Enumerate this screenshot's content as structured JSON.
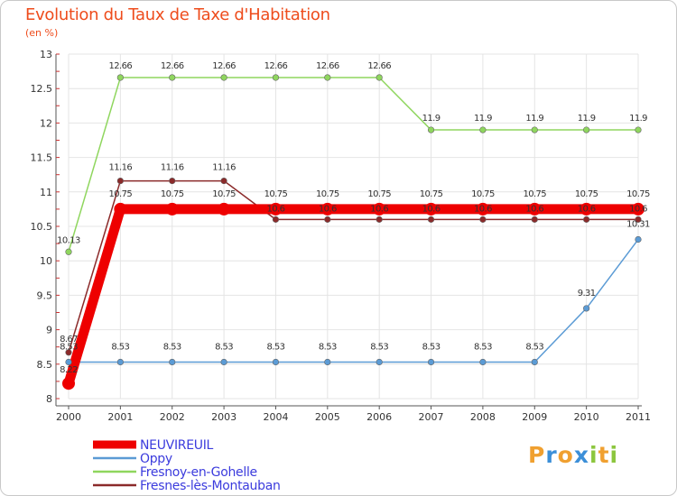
{
  "title": "Evolution du Taux de Taxe d'Habitation",
  "subtitle": "(en %)",
  "logo": {
    "letters": [
      "P",
      "r",
      "o",
      "x",
      "i",
      "t",
      "i"
    ],
    "colors": [
      "#f0a030",
      "#3c8fd8",
      "#f0a030",
      "#3c8fd8",
      "#8cc63e",
      "#f0a030",
      "#8cc63e"
    ]
  },
  "chart_data": {
    "type": "line",
    "x": [
      "2000",
      "2001",
      "2002",
      "2003",
      "2004",
      "2005",
      "2006",
      "2007",
      "2008",
      "2009",
      "2010",
      "2011"
    ],
    "y_ticks": [
      "8",
      "8.5",
      "9",
      "9.5",
      "10",
      "10.5",
      "11",
      "11.5",
      "12",
      "12.5",
      "13"
    ],
    "ylim": [
      8,
      13
    ],
    "grid": true,
    "legend_position": "bottom-left",
    "series": [
      {
        "name": "NEUVIREUIL",
        "color": "#ee0000",
        "values": [
          8.22,
          10.75,
          10.75,
          10.75,
          10.75,
          10.75,
          10.75,
          10.75,
          10.75,
          10.75,
          10.75,
          10.75
        ],
        "labels": [
          "8.22",
          "10.75",
          "10.75",
          "10.75",
          "10.75",
          "10.75",
          "10.75",
          "10.75",
          "10.75",
          "10.75",
          "10.75",
          "10.75"
        ]
      },
      {
        "name": "Oppy",
        "color": "#5b9bd5",
        "values": [
          8.53,
          8.53,
          8.53,
          8.53,
          8.53,
          8.53,
          8.53,
          8.53,
          8.53,
          8.53,
          9.31,
          10.31
        ],
        "labels": [
          "8.53",
          "8.53",
          "8.53",
          "8.53",
          "8.53",
          "8.53",
          "8.53",
          "8.53",
          "8.53",
          "8.53",
          "9.31",
          "10.31"
        ]
      },
      {
        "name": "Fresnoy-en-Gohelle",
        "color": "#8fd65e",
        "values": [
          10.13,
          12.66,
          12.66,
          12.66,
          12.66,
          12.66,
          12.66,
          11.9,
          11.9,
          11.9,
          11.9,
          11.9
        ],
        "labels": [
          "10.13",
          "12.66",
          "12.66",
          "12.66",
          "12.66",
          "12.66",
          "12.66",
          "11.9",
          "11.9",
          "11.9",
          "11.9",
          "11.9"
        ]
      },
      {
        "name": "Fresnes-lès-Montauban",
        "color": "#8b2a2a",
        "values": [
          8.67,
          11.16,
          11.16,
          11.16,
          10.6,
          10.6,
          10.6,
          10.6,
          10.6,
          10.6,
          10.6,
          10.6
        ],
        "labels": [
          "8.67",
          "11.16",
          "11.16",
          "11.16",
          "10.6",
          "10.6",
          "10.6",
          "10.6",
          "10.6",
          "10.6",
          "10.6",
          "10.6"
        ]
      }
    ]
  }
}
